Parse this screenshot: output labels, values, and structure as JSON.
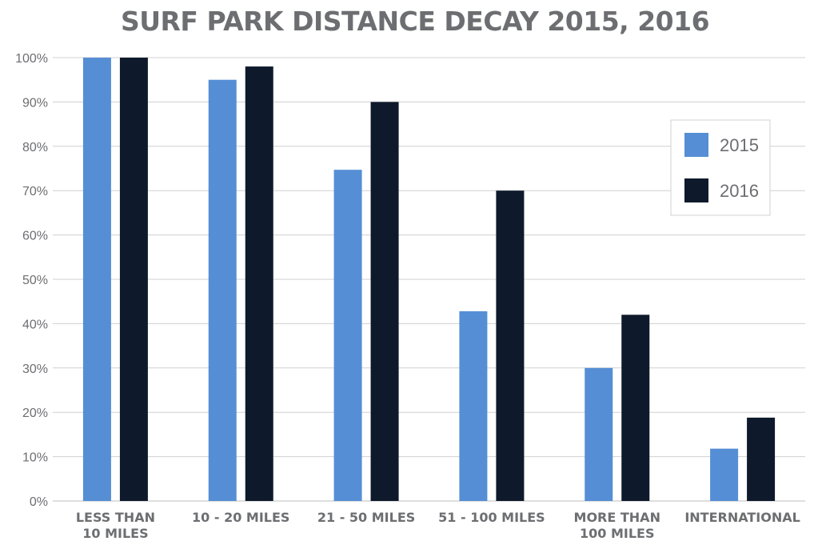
{
  "chart_data": {
    "type": "bar",
    "title": "SURF PARK DISTANCE DECAY 2015, 2016",
    "categories": [
      [
        "LESS THAN",
        "10 MILES"
      ],
      [
        "10 - 20 MILES"
      ],
      [
        "21 - 50 MILES"
      ],
      [
        "51 - 100 MILES"
      ],
      [
        "MORE THAN",
        "100 MILES"
      ],
      [
        "INTERNATIONAL"
      ]
    ],
    "series": [
      {
        "name": "2015",
        "color": "#558ed5",
        "values": [
          100,
          95,
          74.7,
          42.8,
          30,
          11.8
        ]
      },
      {
        "name": "2016",
        "color": "#0e1a2b",
        "values": [
          100,
          98,
          90,
          70,
          42,
          18.8
        ]
      }
    ],
    "yticks": [
      "0%",
      "10%",
      "20%",
      "30%",
      "40%",
      "50%",
      "60%",
      "70%",
      "80%",
      "90%",
      "100%"
    ],
    "ylim": [
      0,
      100
    ],
    "xlabel": "",
    "ylabel": "",
    "grid": true,
    "legend": {
      "position": "top-right"
    }
  }
}
